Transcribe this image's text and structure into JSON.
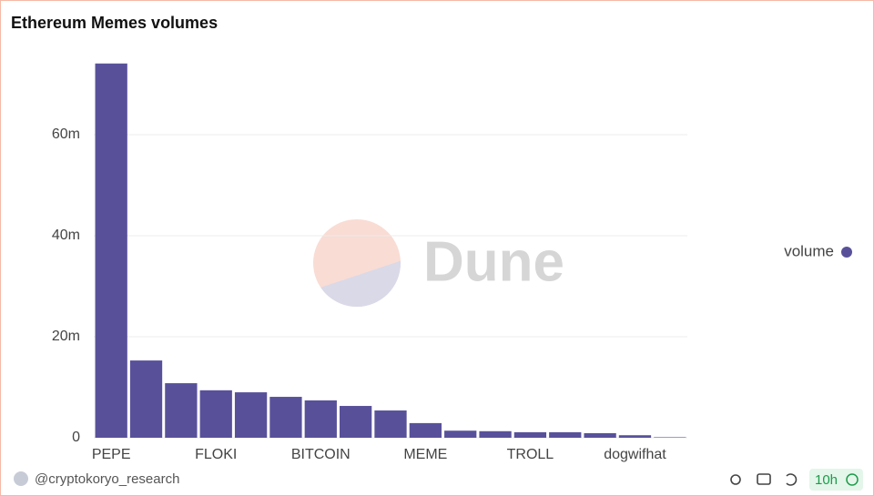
{
  "chart_data": {
    "type": "bar",
    "title": "Ethereum Memes volumes",
    "categories": [
      "PEPE",
      null,
      null,
      "FLOKI",
      null,
      null,
      "BITCOIN",
      null,
      null,
      "MEME",
      null,
      null,
      "TROLL",
      null,
      null,
      "dogwifhat",
      null
    ],
    "series": [
      {
        "name": "volume",
        "color": "#58519a",
        "values": [
          74100000,
          15300000,
          10800000,
          9400000,
          9000000,
          8100000,
          7400000,
          6300000,
          5400000,
          2900000,
          1400000,
          1300000,
          1100000,
          1100000,
          900000,
          500000,
          100000
        ]
      }
    ],
    "ylim": [
      0,
      75500000
    ],
    "yticks": [
      0,
      {
        "value": 20000000,
        "label": "20m"
      },
      {
        "value": 40000000,
        "label": "40m"
      },
      {
        "value": 60000000,
        "label": "60m"
      }
    ],
    "grid": true,
    "legend": "right",
    "watermark": "Dune"
  },
  "footer": {
    "author": "@cryptokoryo_research",
    "age": "10h"
  }
}
